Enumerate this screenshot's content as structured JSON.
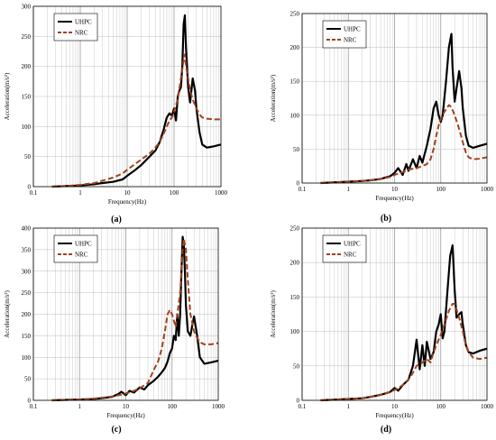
{
  "chart_data": [
    {
      "type": "line",
      "panel_label": "(a)",
      "xlabel": "Frequency(Hz)",
      "ylabel": "Acceleration(m/s²)",
      "xscale": "log",
      "xlim": [
        0.1,
        1000
      ],
      "ylim": [
        0,
        300
      ],
      "x_ticks": [
        "0.1",
        "1",
        "10",
        "100",
        "1000"
      ],
      "y_ticks": [
        "0",
        "50",
        "100",
        "150",
        "200",
        "250",
        "300"
      ],
      "y_tick_values": [
        0,
        50,
        100,
        150,
        200,
        250,
        300
      ],
      "grid": true,
      "legend_position": "top-left",
      "series": [
        {
          "name": "UHPC",
          "color": "#000000",
          "style": "solid",
          "x": [
            0.25,
            0.5,
            1,
            2,
            3,
            5,
            8,
            10,
            15,
            20,
            30,
            40,
            50,
            60,
            70,
            80,
            90,
            100,
            110,
            120,
            130,
            140,
            150,
            160,
            170,
            180,
            200,
            220,
            250,
            280,
            300,
            350,
            400,
            500,
            600,
            700,
            1000
          ],
          "y": [
            0,
            1,
            2,
            4,
            6,
            8,
            12,
            18,
            28,
            36,
            50,
            60,
            75,
            95,
            115,
            122,
            118,
            130,
            110,
            150,
            160,
            165,
            200,
            270,
            285,
            230,
            165,
            140,
            180,
            160,
            130,
            90,
            70,
            65,
            66,
            67,
            70
          ]
        },
        {
          "name": "NRC",
          "color": "#a0421f",
          "style": "dashed",
          "x": [
            0.25,
            0.5,
            1,
            2,
            3,
            5,
            8,
            10,
            15,
            20,
            30,
            40,
            50,
            60,
            70,
            80,
            90,
            100,
            120,
            140,
            160,
            170,
            180,
            200,
            220,
            250,
            300,
            350,
            400,
            500,
            700,
            1000
          ],
          "y": [
            0,
            1,
            3,
            6,
            10,
            15,
            22,
            28,
            38,
            45,
            55,
            65,
            75,
            88,
            100,
            110,
            115,
            125,
            145,
            180,
            210,
            220,
            200,
            180,
            160,
            145,
            130,
            120,
            115,
            113,
            112,
            112
          ]
        }
      ]
    },
    {
      "type": "line",
      "panel_label": "(b)",
      "xlabel": "Frequency(Hz)",
      "ylabel": "Acceleration(m/s²)",
      "xscale": "log",
      "xlim": [
        0.1,
        1000
      ],
      "ylim": [
        0,
        250
      ],
      "x_ticks": [
        "0.1",
        "1",
        "10",
        "100",
        "1000"
      ],
      "y_ticks": [
        "0",
        "50",
        "100",
        "150",
        "200",
        "250"
      ],
      "y_tick_values": [
        0,
        50,
        100,
        150,
        200,
        250
      ],
      "grid": true,
      "legend_position": "top-left",
      "series": [
        {
          "name": "UHPC",
          "color": "#000000",
          "style": "solid",
          "x": [
            0.25,
            0.5,
            1,
            2,
            3,
            5,
            8,
            10,
            12,
            15,
            18,
            20,
            25,
            30,
            35,
            40,
            50,
            60,
            70,
            80,
            90,
            100,
            110,
            130,
            150,
            170,
            180,
            200,
            220,
            250,
            280,
            300,
            350,
            400,
            500,
            700,
            1000
          ],
          "y": [
            0,
            1,
            2,
            3,
            4,
            6,
            10,
            15,
            22,
            12,
            28,
            18,
            35,
            22,
            40,
            30,
            55,
            80,
            110,
            120,
            100,
            90,
            100,
            150,
            200,
            220,
            170,
            120,
            140,
            165,
            140,
            110,
            70,
            55,
            52,
            55,
            58
          ]
        },
        {
          "name": "NRC",
          "color": "#a0421f",
          "style": "dashed",
          "x": [
            0.25,
            0.5,
            1,
            2,
            3,
            5,
            8,
            10,
            15,
            20,
            30,
            40,
            50,
            60,
            70,
            80,
            90,
            100,
            120,
            150,
            170,
            200,
            250,
            300,
            350,
            400,
            500,
            700,
            1000
          ],
          "y": [
            0,
            1,
            2,
            3,
            4,
            6,
            9,
            12,
            16,
            20,
            22,
            25,
            28,
            35,
            50,
            70,
            85,
            95,
            105,
            115,
            112,
            100,
            80,
            60,
            45,
            38,
            35,
            36,
            38
          ]
        }
      ]
    },
    {
      "type": "line",
      "panel_label": "(c)",
      "xlabel": "Frequency(Hz)",
      "ylabel": "Acceleration(m/s²)",
      "xscale": "log",
      "xlim": [
        0.1,
        1000
      ],
      "ylim": [
        0,
        400
      ],
      "x_ticks": [
        "0.1",
        "1",
        "10",
        "100",
        "1000"
      ],
      "y_ticks": [
        "0",
        "50",
        "100",
        "150",
        "200",
        "250",
        "300",
        "350",
        "400"
      ],
      "y_tick_values": [
        0,
        50,
        100,
        150,
        200,
        250,
        300,
        350,
        400
      ],
      "grid": true,
      "legend_position": "top-left",
      "series": [
        {
          "name": "UHPC",
          "color": "#000000",
          "style": "solid",
          "x": [
            0.25,
            0.5,
            1,
            2,
            3,
            5,
            7,
            8,
            10,
            12,
            15,
            20,
            25,
            30,
            40,
            50,
            60,
            70,
            80,
            90,
            100,
            110,
            120,
            130,
            140,
            150,
            160,
            170,
            180,
            190,
            200,
            220,
            250,
            280,
            300,
            350,
            400,
            500,
            700,
            1000
          ],
          "y": [
            0,
            1,
            2,
            3,
            5,
            8,
            15,
            20,
            12,
            22,
            18,
            30,
            25,
            35,
            45,
            55,
            65,
            75,
            90,
            110,
            120,
            150,
            140,
            200,
            150,
            200,
            300,
            380,
            360,
            300,
            220,
            160,
            150,
            180,
            195,
            150,
            100,
            85,
            88,
            92
          ]
        },
        {
          "name": "NRC",
          "color": "#a0421f",
          "style": "dashed",
          "x": [
            0.25,
            0.5,
            1,
            2,
            3,
            5,
            8,
            10,
            15,
            20,
            30,
            40,
            50,
            60,
            70,
            80,
            90,
            100,
            120,
            150,
            170,
            180,
            200,
            220,
            250,
            300,
            350,
            400,
            500,
            700,
            1000
          ],
          "y": [
            0,
            1,
            2,
            4,
            6,
            9,
            13,
            16,
            22,
            28,
            40,
            70,
            90,
            120,
            160,
            200,
            210,
            200,
            170,
            250,
            350,
            375,
            350,
            280,
            200,
            160,
            145,
            135,
            130,
            130,
            133
          ]
        }
      ]
    },
    {
      "type": "line",
      "panel_label": "(d)",
      "xlabel": "Frequency(Hz)",
      "ylabel": "Acceleration(m/s²)",
      "xscale": "log",
      "xlim": [
        0.1,
        1000
      ],
      "ylim": [
        0,
        250
      ],
      "x_ticks": [
        "0.1",
        "1",
        "10",
        "100",
        "1000"
      ],
      "y_ticks": [
        "0",
        "50",
        "100",
        "150",
        "200",
        "250"
      ],
      "y_tick_values": [
        0,
        50,
        100,
        150,
        200,
        250
      ],
      "grid": true,
      "legend_position": "top-left",
      "series": [
        {
          "name": "UHPC",
          "color": "#000000",
          "style": "solid",
          "x": [
            0.25,
            0.5,
            1,
            2,
            3,
            5,
            8,
            10,
            12,
            15,
            20,
            25,
            30,
            35,
            40,
            45,
            50,
            60,
            70,
            80,
            90,
            100,
            110,
            120,
            140,
            160,
            180,
            200,
            220,
            250,
            280,
            300,
            350,
            400,
            500,
            700,
            1000
          ],
          "y": [
            0,
            1,
            2,
            3,
            5,
            8,
            12,
            18,
            14,
            22,
            30,
            50,
            88,
            45,
            80,
            50,
            85,
            60,
            70,
            100,
            110,
            125,
            90,
            100,
            160,
            210,
            225,
            160,
            120,
            125,
            128,
            110,
            80,
            70,
            68,
            72,
            75
          ]
        },
        {
          "name": "NRC",
          "color": "#a0421f",
          "style": "dashed",
          "x": [
            0.25,
            0.5,
            1,
            2,
            3,
            5,
            8,
            10,
            15,
            20,
            25,
            30,
            40,
            50,
            60,
            70,
            80,
            100,
            120,
            150,
            180,
            200,
            250,
            300,
            350,
            400,
            500,
            700,
            1000
          ],
          "y": [
            0,
            1,
            2,
            3,
            5,
            8,
            12,
            15,
            22,
            30,
            40,
            50,
            55,
            60,
            55,
            70,
            80,
            95,
            110,
            130,
            140,
            140,
            120,
            100,
            80,
            70,
            62,
            60,
            62
          ]
        }
      ]
    }
  ]
}
